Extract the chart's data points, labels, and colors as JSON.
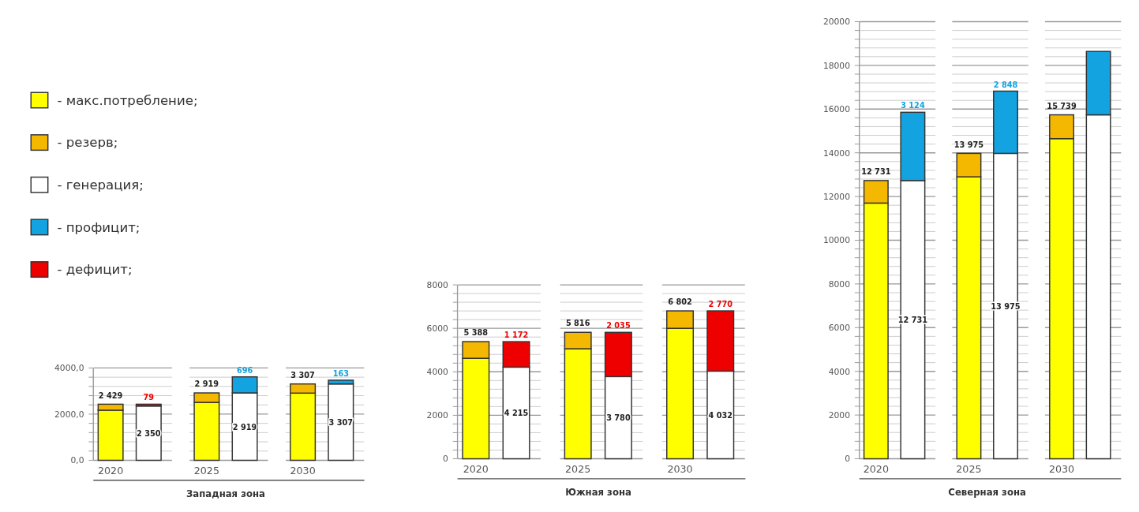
{
  "chart_data": [
    {
      "type": "bar",
      "stacked": true,
      "xlabel": "Западная зона",
      "categories": [
        "2020",
        null,
        "2025",
        null,
        "2030",
        null
      ],
      "ylim": [
        0,
        4000
      ],
      "yticks": [
        {
          "value": 0,
          "label": "0,0"
        },
        {
          "value": 400,
          "label": null
        },
        {
          "value": 800,
          "label": null
        },
        {
          "value": 1200,
          "label": null
        },
        {
          "value": 1600,
          "label": null
        },
        {
          "value": 2000,
          "label": "2000,0"
        },
        {
          "value": 2400,
          "label": null
        },
        {
          "value": 2800,
          "label": null
        },
        {
          "value": 3200,
          "label": null
        },
        {
          "value": 3600,
          "label": null
        },
        {
          "value": 4000,
          "label": "4000,0"
        }
      ],
      "grid": "y",
      "legend": "left",
      "totals": [
        "2 429",
        null,
        "2 919",
        null,
        "3 307",
        null
      ],
      "series": [
        {
          "name": "- макс.потребление;",
          "color": "#ffff00",
          "values": [
            2170,
            null,
            2510,
            null,
            2910,
            null
          ]
        },
        {
          "name": "- резерв;",
          "color": "#f5b800",
          "values": [
            259,
            null,
            409,
            null,
            397,
            null
          ]
        },
        {
          "name": "- генерация;",
          "color": "#ffffff",
          "values": [
            null,
            2350,
            null,
            2919,
            null,
            3307
          ],
          "value_labels": [
            null,
            "2 350",
            null,
            "2 919",
            null,
            "3 307"
          ]
        },
        {
          "name": "- профицит;",
          "color": "#12a3e0",
          "values": [
            null,
            null,
            null,
            696,
            null,
            163
          ],
          "value_labels": [
            null,
            null,
            null,
            "696",
            null,
            "163"
          ]
        },
        {
          "name": "- дефицит;",
          "color": "#ee0000",
          "values": [
            null,
            79,
            null,
            null,
            null,
            null
          ],
          "value_labels": [
            null,
            "79",
            null,
            null,
            null,
            null
          ]
        }
      ]
    },
    {
      "type": "bar",
      "stacked": true,
      "xlabel": "Южная зона",
      "categories": [
        "2020",
        null,
        "2025",
        null,
        "2030",
        null
      ],
      "ylim": [
        0,
        8000
      ],
      "yticks": [
        0,
        {
          "value": 400,
          "label": null
        },
        {
          "value": 800,
          "label": null
        },
        {
          "value": 1200,
          "label": null
        },
        {
          "value": 1600,
          "label": null
        },
        2000,
        {
          "value": 2400,
          "label": null
        },
        {
          "value": 2800,
          "label": null
        },
        {
          "value": 3200,
          "label": null
        },
        {
          "value": 3600,
          "label": null
        },
        4000,
        {
          "value": 4400,
          "label": null
        },
        {
          "value": 4800,
          "label": null
        },
        {
          "value": 5200,
          "label": null
        },
        {
          "value": 5600,
          "label": null
        },
        6000,
        {
          "value": 6400,
          "label": null
        },
        {
          "value": 6800,
          "label": null
        },
        {
          "value": 7200,
          "label": null
        },
        {
          "value": 7600,
          "label": null
        },
        8000
      ],
      "grid": "y",
      "totals": [
        "5 388",
        null,
        "5 816",
        null,
        "6 802",
        null
      ],
      "series": [
        {
          "color": "#ffff00",
          "values": [
            4620,
            null,
            5060,
            null,
            6000,
            null
          ]
        },
        {
          "color": "#f5b800",
          "values": [
            768,
            null,
            756,
            null,
            802,
            null
          ]
        },
        {
          "color": "#ffffff",
          "values": [
            null,
            4215,
            null,
            3780,
            null,
            4032
          ],
          "value_labels": [
            null,
            "4 215",
            null,
            "3 780",
            null,
            "4 032"
          ]
        },
        {
          "color": "#ee0000",
          "values": [
            null,
            1172,
            null,
            2035,
            null,
            2770
          ],
          "value_labels": [
            null,
            "1 172",
            null,
            "2 035",
            null,
            "2 770"
          ]
        }
      ]
    },
    {
      "type": "bar",
      "stacked": true,
      "xlabel": "Северная зона",
      "categories": [
        "2020",
        null,
        "2025",
        null,
        "2030",
        null
      ],
      "ylim": [
        0,
        20000
      ],
      "yticks": [
        0,
        {
          "value": 400,
          "label": null
        },
        {
          "value": 800,
          "label": null
        },
        {
          "value": 1200,
          "label": null
        },
        {
          "value": 1600,
          "label": null
        },
        2000,
        {
          "value": 2400,
          "label": null
        },
        {
          "value": 2800,
          "label": null
        },
        {
          "value": 3200,
          "label": null
        },
        {
          "value": 3600,
          "label": null
        },
        4000,
        {
          "value": 4400,
          "label": null
        },
        {
          "value": 4800,
          "label": null
        },
        {
          "value": 5200,
          "label": null
        },
        {
          "value": 5600,
          "label": null
        },
        6000,
        {
          "value": 6400,
          "label": null
        },
        {
          "value": 6800,
          "label": null
        },
        {
          "value": 7200,
          "label": null
        },
        {
          "value": 7600,
          "label": null
        },
        8000,
        {
          "value": 8400,
          "label": null
        },
        {
          "value": 8800,
          "label": null
        },
        {
          "value": 9200,
          "label": null
        },
        {
          "value": 9600,
          "label": null
        },
        10000,
        {
          "value": 10400,
          "label": null
        },
        {
          "value": 10800,
          "label": null
        },
        {
          "value": 11200,
          "label": null
        },
        {
          "value": 11600,
          "label": null
        },
        12000,
        {
          "value": 12400,
          "label": null
        },
        {
          "value": 12800,
          "label": null
        },
        {
          "value": 13200,
          "label": null
        },
        {
          "value": 13600,
          "label": null
        },
        14000,
        {
          "value": 14400,
          "label": null
        },
        {
          "value": 14800,
          "label": null
        },
        {
          "value": 15200,
          "label": null
        },
        {
          "value": 15600,
          "label": null
        },
        16000,
        {
          "value": 16400,
          "label": null
        },
        {
          "value": 16800,
          "label": null
        },
        {
          "value": 17200,
          "label": null
        },
        {
          "value": 17600,
          "label": null
        },
        18000,
        {
          "value": 18400,
          "label": null
        },
        {
          "value": 18800,
          "label": null
        },
        {
          "value": 19200,
          "label": null
        },
        {
          "value": 19600,
          "label": null
        },
        20000
      ],
      "grid": "y",
      "totals": [
        "12 731",
        null,
        "13 975",
        null,
        "15 739",
        null
      ],
      "series": [
        {
          "color": "#ffff00",
          "values": [
            11700,
            null,
            12900,
            null,
            14650,
            null
          ]
        },
        {
          "color": "#f5b800",
          "values": [
            1031,
            null,
            1075,
            null,
            1089,
            null
          ]
        },
        {
          "color": "#ffffff",
          "values": [
            null,
            12731,
            null,
            13975,
            null,
            15739
          ],
          "value_labels": [
            null,
            "12 731",
            null,
            "13 975",
            null,
            null
          ]
        },
        {
          "color": "#12a3e0",
          "values": [
            null,
            3124,
            null,
            2848,
            null,
            2900
          ],
          "value_labels": [
            null,
            "3 124",
            null,
            "2 848",
            null,
            null
          ]
        }
      ]
    }
  ]
}
